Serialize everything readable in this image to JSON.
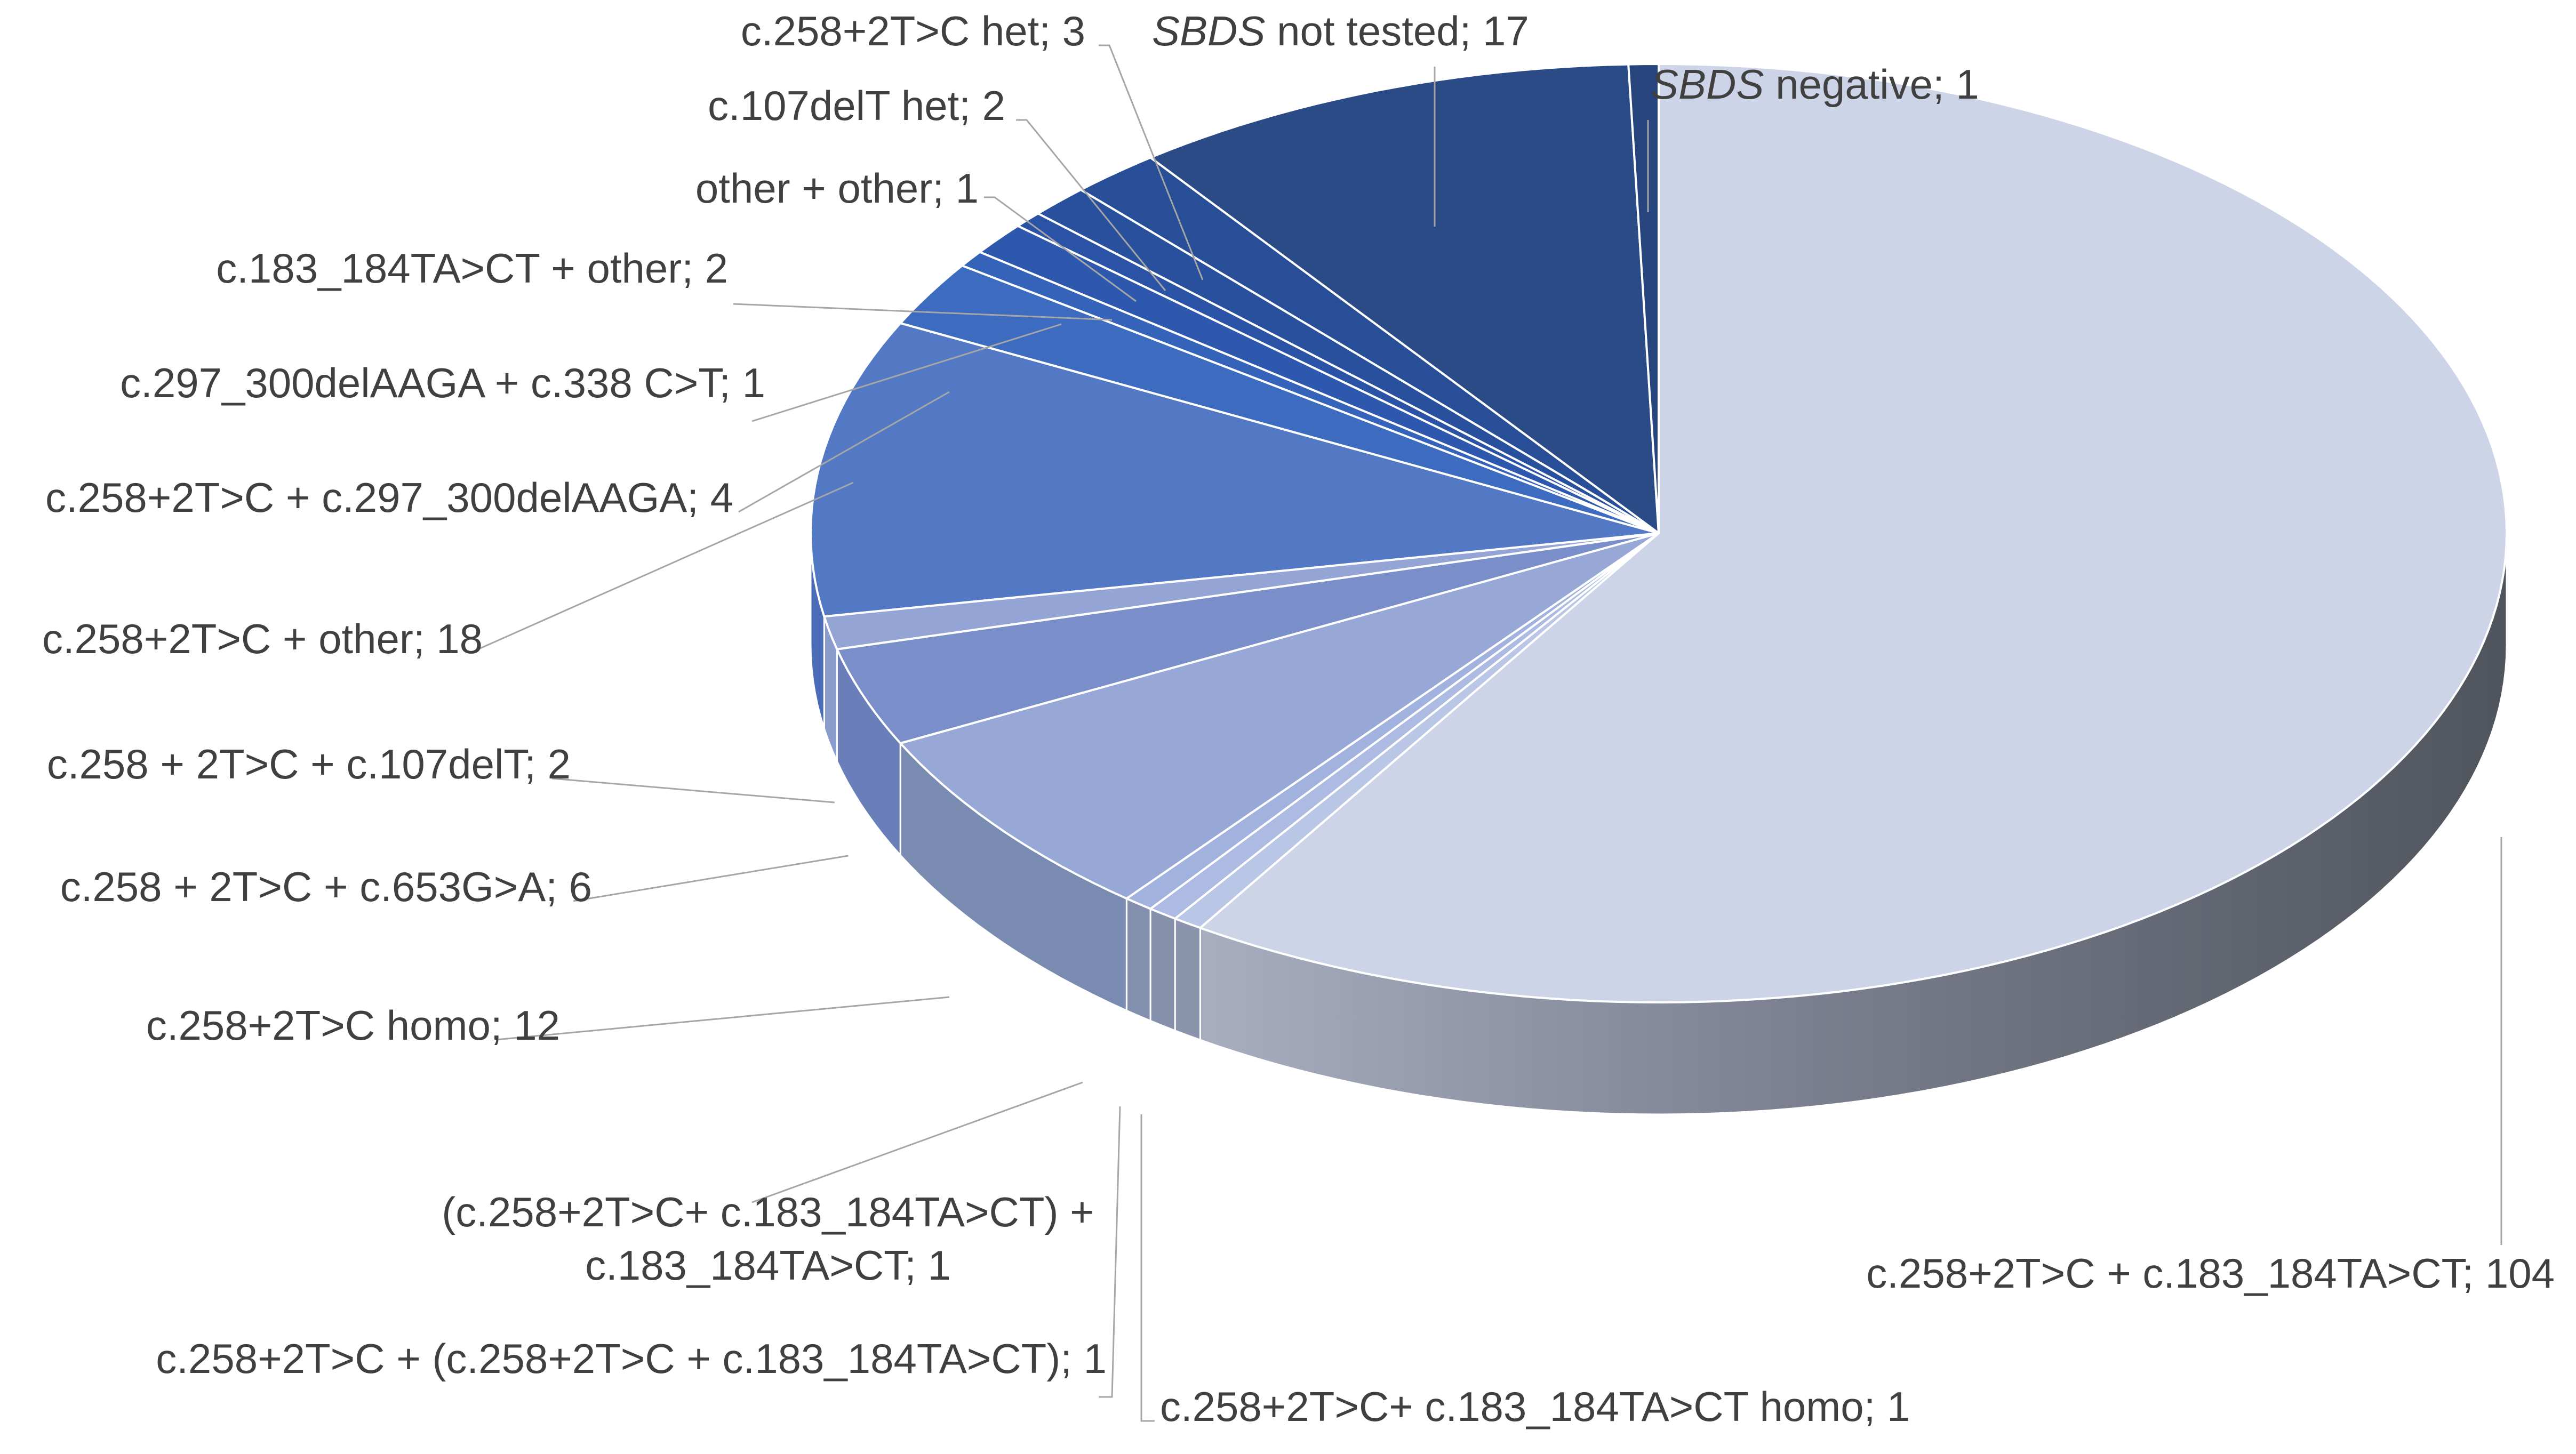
{
  "chart_data": {
    "type": "pie",
    "style": "3d",
    "title": "",
    "slices": [
      {
        "label": "c.258+2T>C + c.183_184TA>CT",
        "value": 104
      },
      {
        "label": "c.258+2T>C+ c.183_184TA>CT homo",
        "value": 1
      },
      {
        "label": "c.258+2T>C + (c.258+2T>C + c.183_184TA>CT)",
        "value": 1
      },
      {
        "label": "(c.258+2T>C+ c.183_184TA>CT) + c.183_184TA>CT",
        "value": 1
      },
      {
        "label": "c.258+2T>C homo",
        "value": 12
      },
      {
        "label": "c.258 + 2T>C + c.653G>A",
        "value": 6
      },
      {
        "label": "c.258 + 2T>C + c.107delT",
        "value": 2
      },
      {
        "label": "c.258+2T>C + other",
        "value": 18
      },
      {
        "label": "c.258+2T>C + c.297_300delAAGA",
        "value": 4
      },
      {
        "label": "c.297_300delAAGA + c.338 C>T",
        "value": 1
      },
      {
        "label": "c.183_184TA>CT + other",
        "value": 2
      },
      {
        "label": "other + other",
        "value": 1
      },
      {
        "label": "c.107delT het",
        "value": 2
      },
      {
        "label": "c.258+2T>C het",
        "value": 3
      },
      {
        "label": "SBDS not tested",
        "value": 17,
        "italic_prefix": "SBDS"
      },
      {
        "label": "SBDS negative",
        "value": 1,
        "italic_prefix": "SBDS"
      }
    ],
    "label_format": "{label}; {value}",
    "legend": "none"
  },
  "colors": {
    "top": [
      "#cdd4e8",
      "#bac6e6",
      "#adbbe2",
      "#a2b2de",
      "#97a8d7",
      "#7a8fca",
      "#93a4d5",
      "#5479c4",
      "#3d6bc0",
      "#3563b9",
      "#2e58ae",
      "#2b53a5",
      "#28509d",
      "#284e98",
      "#2b4b86",
      "#27447d"
    ],
    "side": [
      "#5a5f6a",
      "#8a94ad",
      "#8591ab",
      "#8290ad",
      "#7a8bb1",
      "#6a7fba",
      "#8a9ccc",
      "#4b6cb6",
      "#3a61ad",
      "#3059a6",
      "#2c529e",
      "#294e98",
      "#274b91",
      "#264a8c",
      "#29457a",
      "#253f70"
    ],
    "leader": "#a6a6a6",
    "text": "#404040"
  }
}
